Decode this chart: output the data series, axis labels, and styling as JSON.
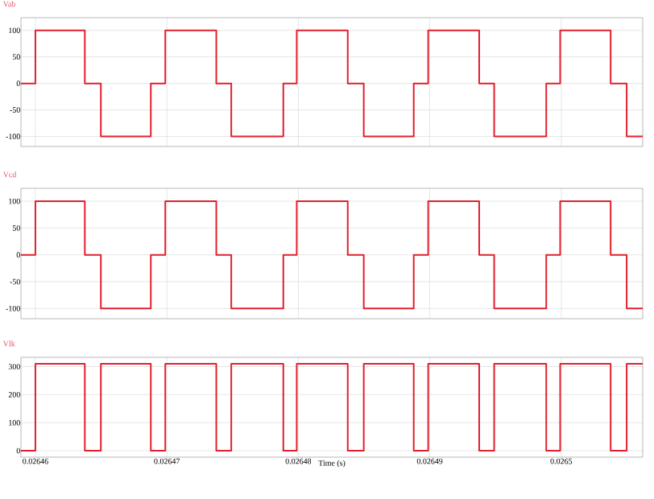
{
  "chart_data": [
    {
      "type": "step",
      "title": "Vab",
      "color": "#e2202e",
      "grid": true,
      "tick_labels": "y",
      "x": [
        0.0264589,
        0.02646,
        0.02646376,
        0.02646498,
        0.02646878,
        0.02646988,
        0.02647376,
        0.0264749,
        0.02647886,
        0.02647988,
        0.02648376,
        0.02648498,
        0.02648878,
        0.02648988,
        0.02649376,
        0.0264949,
        0.02649886,
        0.02649992,
        0.02650376,
        0.02650498,
        0.0265062
      ],
      "values": [
        0,
        100,
        0,
        -100,
        0,
        100,
        0,
        -100,
        0,
        100,
        0,
        -100,
        0,
        100,
        0,
        -100,
        0,
        100,
        0,
        -100,
        -100
      ],
      "xlim": [
        0.0264589,
        0.0265062
      ],
      "xticks": [
        0.02646,
        0.02647,
        0.02648,
        0.02649,
        0.0265
      ],
      "ylim": [
        -119,
        124
      ],
      "yticks": [
        -100,
        -50,
        0,
        50,
        100
      ]
    },
    {
      "type": "step",
      "title": "Vcd",
      "color": "#e2202e",
      "grid": true,
      "tick_labels": "y",
      "x": [
        0.0264589,
        0.02646,
        0.02646376,
        0.02646498,
        0.02646878,
        0.02646988,
        0.02647376,
        0.0264749,
        0.02647886,
        0.02647988,
        0.02648376,
        0.02648498,
        0.02648878,
        0.02648988,
        0.02649376,
        0.0264949,
        0.02649886,
        0.02649992,
        0.02650376,
        0.02650498,
        0.0265062
      ],
      "values": [
        0,
        100,
        0,
        -100,
        0,
        100,
        0,
        -100,
        0,
        100,
        0,
        -100,
        0,
        100,
        0,
        -100,
        0,
        100,
        0,
        -100,
        -100
      ],
      "xlim": [
        0.0264589,
        0.0265062
      ],
      "xticks": [
        0.02646,
        0.02647,
        0.02648,
        0.02649,
        0.0265
      ],
      "ylim": [
        -119,
        124
      ],
      "yticks": [
        -100,
        -50,
        0,
        50,
        100
      ]
    },
    {
      "type": "step",
      "title": "Vlk",
      "xlabel": "Time (s)",
      "color": "#e2202e",
      "grid": true,
      "x": [
        0.0264589,
        0.02646,
        0.02646376,
        0.02646498,
        0.02646878,
        0.02646988,
        0.02647376,
        0.0264749,
        0.02647886,
        0.02647988,
        0.02648376,
        0.02648498,
        0.02648878,
        0.02648988,
        0.02649376,
        0.0264949,
        0.02649886,
        0.02649992,
        0.02650376,
        0.02650498,
        0.0265062
      ],
      "values": [
        0,
        310,
        0,
        310,
        0,
        310,
        0,
        310,
        0,
        310,
        0,
        310,
        0,
        310,
        0,
        310,
        0,
        310,
        0,
        310,
        310
      ],
      "xlim": [
        0.0264589,
        0.0265062
      ],
      "xticks": [
        0.02646,
        0.02647,
        0.02648,
        0.02649,
        0.0265
      ],
      "ylim": [
        -23,
        333
      ],
      "yticks": [
        0,
        100,
        200,
        300
      ]
    }
  ]
}
